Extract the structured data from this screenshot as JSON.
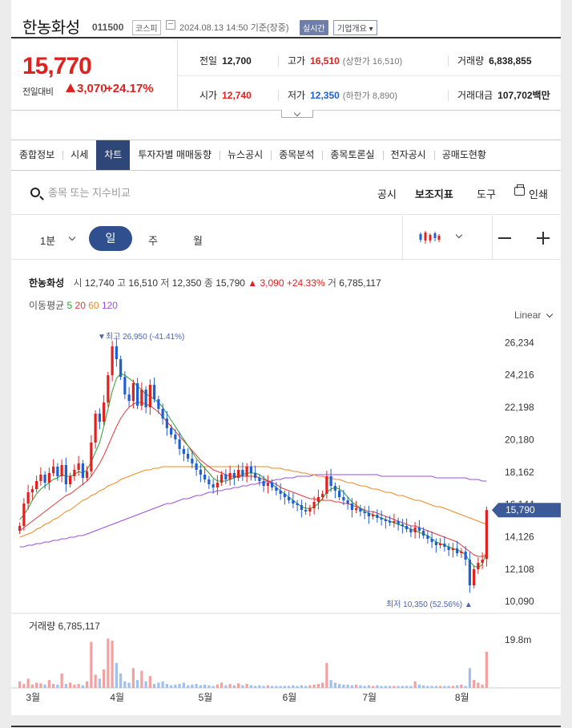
{
  "header": {
    "stock_name": "한농화성",
    "stock_code": "011500",
    "market": "코스피",
    "timestamp": "2024.08.13 14:50 기준(장중)",
    "realtime_badge": "실시간",
    "overview_button": "기업개요 ▾"
  },
  "price": {
    "current": "15,770",
    "change_label": "전일대비",
    "change": "3,070",
    "change_pct": "+24.17%",
    "prev_label": "전일",
    "prev": "12,700",
    "high_label": "고가",
    "high": "16,510",
    "upper_limit": "(상한가 16,510)",
    "volume_label": "거래량",
    "volume": "6,838,855",
    "open_label": "시가",
    "open": "12,740",
    "low_label": "저가",
    "low": "12,350",
    "lower_limit": "(하한가 8,890)",
    "amount_label": "거래대금",
    "amount": "107,702백만"
  },
  "tabs": [
    "종합정보",
    "시세",
    "차트",
    "투자자별 매매동향",
    "뉴스공시",
    "종목분석",
    "종목토론실",
    "전자공시",
    "공매도현황"
  ],
  "toolbar": {
    "search_placeholder": "종목 또는 지수비교",
    "notice": "공시",
    "indicator": "보조지표",
    "tools": "도구",
    "print": "인쇄"
  },
  "period": {
    "minute": "1분",
    "day": "일",
    "week": "주",
    "month": "월"
  },
  "chart_info": {
    "title": "한농화성",
    "open_k": "시",
    "open": "12,740",
    "high_k": "고",
    "high": "16,510",
    "low_k": "저",
    "low": "12,350",
    "close_k": "종",
    "close": "15,790",
    "change": "▲ 3,090 +24.33%",
    "vol_k": "거",
    "vol": "6,785,117",
    "ma_label": "이동평균",
    "ma5": "5",
    "ma20": "20",
    "ma60": "60",
    "ma120": "120",
    "scale": "Linear"
  },
  "colors": {
    "up": "#e12020",
    "down": "#1e5fd6",
    "ma5": "#2ca02c",
    "ma20": "#e23b3b",
    "ma60": "#f08a24",
    "ma120": "#9b4fe0",
    "accent": "#2f4678"
  },
  "chart_data": {
    "type": "candlestick",
    "y_ticks": [
      "26,234",
      "24,216",
      "22,198",
      "20,180",
      "18,162",
      "16,144",
      "14,126",
      "12,108",
      "10,090"
    ],
    "x_ticks": [
      "3월",
      "4월",
      "5월",
      "6월",
      "7월",
      "8월"
    ],
    "current_label": "15,790",
    "max_annotation": "▼최고 26,950 (-41.41%)",
    "min_annotation": "최저 10,350 (52.56%) ▲",
    "volume_label": "거래량 6,785,117",
    "volume_tick": "19.8m",
    "ylim": [
      9600,
      27600
    ],
    "closes": [
      14800,
      16200,
      16900,
      17100,
      17600,
      18000,
      17500,
      18100,
      18500,
      17900,
      18600,
      17400,
      17900,
      18300,
      18700,
      17800,
      18200,
      20000,
      21800,
      21300,
      22500,
      24200,
      26000,
      25200,
      24100,
      23000,
      22600,
      23700,
      22300,
      23300,
      22200,
      23600,
      22700,
      22100,
      21500,
      20900,
      20500,
      20200,
      19600,
      19300,
      19000,
      18700,
      18300,
      18000,
      17700,
      17400,
      17200,
      17500,
      18000,
      17700,
      18100,
      17800,
      18300,
      17900,
      18500,
      18100,
      17800,
      17600,
      17300,
      17500,
      17200,
      17000,
      16800,
      16600,
      16400,
      16200,
      16100,
      15800,
      15700,
      15900,
      16300,
      16600,
      16800,
      17900,
      17300,
      17000,
      16600,
      16400,
      16200,
      15800,
      15900,
      15700,
      15600,
      15400,
      15500,
      15300,
      15200,
      15100,
      15000,
      15100,
      14900,
      14800,
      14600,
      14400,
      14700,
      14500,
      14200,
      14000,
      13800,
      13600,
      13700,
      13500,
      13300,
      13400,
      13100,
      13200,
      12700,
      11100,
      12100,
      12500,
      12700,
      15790
    ],
    "ma5": [
      15200,
      15500,
      15900,
      16400,
      16800,
      17100,
      17300,
      17500,
      17700,
      17800,
      18000,
      17900,
      17900,
      18000,
      18200,
      18100,
      18300,
      18800,
      19400,
      20000,
      21000,
      22100,
      23200,
      24000,
      24300,
      24200,
      24000,
      23800,
      23500,
      23300,
      23000,
      22900,
      22700,
      22500,
      22200,
      21800,
      21400,
      21000,
      20600,
      20200,
      19800,
      19400,
      19000,
      18700,
      18400,
      18100,
      17800,
      17600,
      17600,
      17600,
      17700,
      17800,
      17900,
      18000,
      18100,
      18100,
      18100,
      18000,
      17800,
      17600,
      17400,
      17200,
      17000,
      16800,
      16600,
      16400,
      16200,
      16000,
      15900,
      15900,
      16000,
      16200,
      16500,
      16900,
      17100,
      17200,
      17100,
      16900,
      16600,
      16300,
      16100,
      15900,
      15700,
      15600,
      15500,
      15400,
      15300,
      15200,
      15100,
      15000,
      14900,
      14800,
      14700,
      14600,
      14500,
      14400,
      14300,
      14200,
      14000,
      13800,
      13700,
      13600,
      13500,
      13400,
      13300,
      13200,
      13000,
      12600,
      12300,
      12200,
      12400,
      13200
    ],
    "ma20": [
      14500,
      14700,
      14900,
      15100,
      15300,
      15500,
      15700,
      15900,
      16100,
      16300,
      16500,
      16700,
      16800,
      17000,
      17200,
      17400,
      17600,
      17900,
      18300,
      18700,
      19200,
      19800,
      20400,
      21000,
      21500,
      21900,
      22200,
      22400,
      22500,
      22500,
      22400,
      22300,
      22100,
      21900,
      21600,
      21300,
      21000,
      20700,
      20400,
      20100,
      19800,
      19500,
      19200,
      18900,
      18700,
      18500,
      18300,
      18200,
      18100,
      18000,
      17900,
      17900,
      17900,
      17900,
      17900,
      17900,
      17900,
      17800,
      17700,
      17600,
      17500,
      17400,
      17200,
      17100,
      17000,
      16900,
      16800,
      16700,
      16600,
      16500,
      16500,
      16400,
      16400,
      16400,
      16400,
      16300,
      16300,
      16200,
      16200,
      16100,
      16000,
      15900,
      15800,
      15700,
      15700,
      15600,
      15500,
      15400,
      15300,
      15200,
      15100,
      15000,
      14900,
      14800,
      14800,
      14700,
      14600,
      14500,
      14400,
      14300,
      14200,
      14100,
      14000,
      13900,
      13800,
      13600,
      13400,
      13200,
      13000,
      12900,
      12900,
      13000
    ],
    "ma60": [
      14100,
      14200,
      14300,
      14400,
      14600,
      14700,
      14900,
      15000,
      15200,
      15300,
      15500,
      15700,
      15800,
      16000,
      16200,
      16400,
      16500,
      16700,
      16800,
      17000,
      17100,
      17300,
      17400,
      17500,
      17700,
      17800,
      17900,
      18000,
      18100,
      18200,
      18300,
      18300,
      18400,
      18400,
      18500,
      18500,
      18500,
      18500,
      18500,
      18500,
      18500,
      18500,
      18500,
      18500,
      18500,
      18500,
      18500,
      18500,
      18500,
      18500,
      18500,
      18500,
      18500,
      18500,
      18500,
      18500,
      18500,
      18500,
      18500,
      18500,
      18400,
      18400,
      18400,
      18300,
      18300,
      18200,
      18200,
      18100,
      18100,
      18000,
      18000,
      17900,
      17900,
      17800,
      17800,
      17700,
      17700,
      17600,
      17500,
      17500,
      17400,
      17300,
      17300,
      17200,
      17100,
      17100,
      17000,
      16900,
      16900,
      16800,
      16700,
      16700,
      16600,
      16500,
      16400,
      16400,
      16300,
      16200,
      16100,
      16000,
      16000,
      15900,
      15800,
      15700,
      15600,
      15500,
      15400,
      15300,
      15200,
      15100,
      15000,
      14900
    ],
    "ma120": [
      13500,
      13500,
      13600,
      13600,
      13700,
      13700,
      13800,
      13800,
      13900,
      13900,
      14000,
      14000,
      14100,
      14100,
      14200,
      14200,
      14300,
      14400,
      14500,
      14600,
      14700,
      14800,
      14900,
      15000,
      15100,
      15200,
      15300,
      15400,
      15500,
      15600,
      15700,
      15800,
      15900,
      16000,
      16100,
      16200,
      16200,
      16300,
      16400,
      16500,
      16500,
      16600,
      16700,
      16700,
      16800,
      16900,
      16900,
      17000,
      17000,
      17100,
      17100,
      17200,
      17200,
      17300,
      17300,
      17400,
      17400,
      17500,
      17500,
      17600,
      17600,
      17700,
      17700,
      17800,
      17800,
      17800,
      17900,
      17900,
      17900,
      17900,
      18000,
      18000,
      18000,
      18000,
      18000,
      18000,
      18000,
      18000,
      18000,
      18000,
      18000,
      18000,
      18000,
      18000,
      18000,
      18000,
      17900,
      17900,
      17900,
      17900,
      17900,
      17900,
      17900,
      17900,
      17900,
      17900,
      17900,
      17900,
      17900,
      17800,
      17800,
      17800,
      17800,
      17800,
      17800,
      17800,
      17800,
      17700,
      17700,
      17700,
      17600,
      17600
    ],
    "volume_ratio": [
      0.1,
      0.06,
      0.14,
      0.05,
      0.08,
      0.07,
      0.05,
      0.12,
      0.06,
      0.05,
      0.22,
      0.06,
      0.08,
      0.05,
      0.06,
      0.04,
      0.1,
      0.7,
      0.2,
      0.14,
      0.28,
      0.75,
      0.72,
      0.38,
      0.22,
      0.1,
      0.08,
      0.3,
      0.12,
      0.26,
      0.1,
      0.18,
      0.06,
      0.08,
      0.1,
      0.06,
      0.04,
      0.05,
      0.06,
      0.08,
      0.04,
      0.05,
      0.06,
      0.04,
      0.05,
      0.04,
      0.03,
      0.05,
      0.08,
      0.04,
      0.06,
      0.04,
      0.07,
      0.04,
      0.06,
      0.04,
      0.03,
      0.04,
      0.03,
      0.04,
      0.03,
      0.03,
      0.03,
      0.03,
      0.03,
      0.04,
      0.03,
      0.04,
      0.03,
      0.04,
      0.05,
      0.06,
      0.08,
      0.38,
      0.12,
      0.08,
      0.06,
      0.05,
      0.05,
      0.04,
      0.05,
      0.04,
      0.03,
      0.04,
      0.03,
      0.04,
      0.03,
      0.03,
      0.03,
      0.03,
      0.03,
      0.03,
      0.03,
      0.03,
      0.1,
      0.05,
      0.04,
      0.03,
      0.03,
      0.03,
      0.03,
      0.03,
      0.03,
      0.03,
      0.04,
      0.05,
      0.03,
      0.3,
      0.12,
      0.08,
      0.05,
      0.55
    ]
  }
}
